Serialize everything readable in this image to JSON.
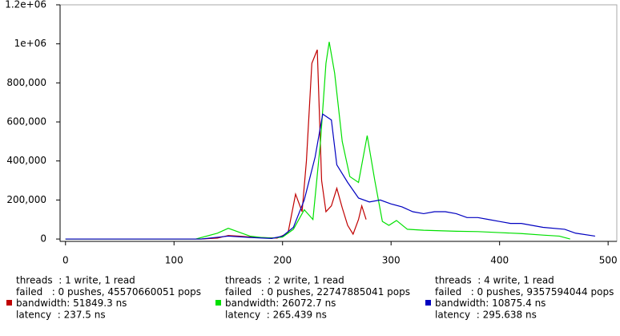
{
  "chart_data": {
    "type": "line",
    "xlim": [
      -5,
      508
    ],
    "ylim": [
      -12000,
      1200000
    ],
    "xticks": [
      0,
      100,
      200,
      300,
      400,
      500
    ],
    "yticks": [
      0,
      {
        "value": 200000,
        "label": "200,000"
      },
      {
        "value": 400000,
        "label": "400,000"
      },
      {
        "value": 600000,
        "label": "600,000"
      },
      {
        "value": 800000,
        "label": "800,000"
      },
      {
        "value": 1000000,
        "label": "1e+06"
      },
      {
        "value": 1200000,
        "label": "1.2e+06"
      }
    ],
    "series": [
      {
        "color": "#c00000",
        "info": {
          "threads": "threads  : 1 write, 1 read",
          "failed": "failed   : 0 pushes, 45570660051 pops",
          "bandwidth": "bandwidth: 51849.3 ns",
          "latency": "latency  : 237.5 ns"
        },
        "x": [
          0,
          125,
          140,
          150,
          160,
          175,
          195,
          205,
          212,
          218,
          222,
          227,
          232,
          236,
          240,
          245,
          250,
          255,
          260,
          265,
          270,
          273,
          277
        ],
        "values": [
          0,
          0,
          5000,
          18000,
          15000,
          8000,
          5000,
          30000,
          230000,
          140000,
          400000,
          900000,
          970000,
          300000,
          140000,
          170000,
          260000,
          160000,
          70000,
          25000,
          100000,
          170000,
          100000
        ]
      },
      {
        "color": "#00e000",
        "info": {
          "threads": "threads  : 2 write, 1 read",
          "failed": "failed   : 0 pushes, 22747885041 pops",
          "bandwidth": "bandwidth: 26072.7 ns",
          "latency": "latency  : 265.439 ns"
        },
        "x": [
          0,
          120,
          140,
          150,
          160,
          170,
          180,
          190,
          200,
          210,
          220,
          228,
          235,
          240,
          243,
          248,
          255,
          262,
          270,
          278,
          285,
          292,
          298,
          305,
          315,
          330,
          360,
          380,
          400,
          420,
          440,
          455,
          465
        ],
        "values": [
          0,
          0,
          30000,
          55000,
          35000,
          15000,
          8000,
          5000,
          10000,
          50000,
          150000,
          100000,
          500000,
          900000,
          1010000,
          850000,
          500000,
          320000,
          290000,
          530000,
          300000,
          90000,
          70000,
          95000,
          50000,
          45000,
          40000,
          38000,
          33000,
          28000,
          20000,
          15000,
          0
        ]
      },
      {
        "color": "#0000c0",
        "info": {
          "threads": "threads  : 4 write, 1 read",
          "failed": "failed   : 0 pushes, 9357594044 pops",
          "bandwidth": "bandwidth: 10875.4 ns",
          "latency": "latency  : 295.638 ns"
        },
        "x": [
          0,
          125,
          150,
          170,
          190,
          200,
          210,
          220,
          230,
          237,
          245,
          250,
          260,
          270,
          280,
          290,
          300,
          310,
          320,
          330,
          340,
          350,
          360,
          370,
          380,
          390,
          400,
          410,
          420,
          440,
          460,
          470,
          488
        ],
        "values": [
          0,
          0,
          15000,
          8000,
          3000,
          15000,
          60000,
          200000,
          420000,
          640000,
          610000,
          380000,
          290000,
          210000,
          190000,
          200000,
          180000,
          165000,
          140000,
          130000,
          140000,
          140000,
          130000,
          110000,
          110000,
          100000,
          90000,
          80000,
          80000,
          60000,
          50000,
          30000,
          15000
        ]
      }
    ]
  }
}
